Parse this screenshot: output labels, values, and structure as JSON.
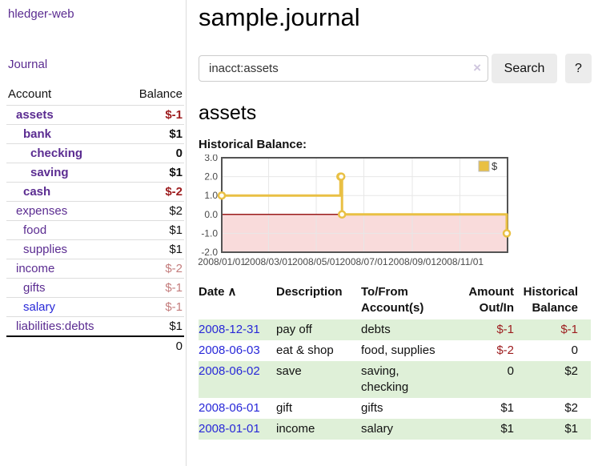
{
  "sidebar": {
    "brand": "hledger-web",
    "journal_link": "Journal",
    "accounts": {
      "col_account": "Account",
      "col_balance": "Balance",
      "rows": [
        {
          "name": "assets",
          "indent": 1,
          "bold": true,
          "color": "purple",
          "balance": "$-1"
        },
        {
          "name": "bank",
          "indent": 2,
          "bold": true,
          "color": "purple",
          "balance": "$1"
        },
        {
          "name": "checking",
          "indent": 3,
          "bold": true,
          "color": "purple",
          "balance": "0"
        },
        {
          "name": "saving",
          "indent": 3,
          "bold": true,
          "color": "purple",
          "balance": "$1"
        },
        {
          "name": "cash",
          "indent": 2,
          "bold": true,
          "color": "purple",
          "balance": "$-2"
        },
        {
          "name": "expenses",
          "indent": 1,
          "bold": false,
          "color": "purple",
          "balance": "$2"
        },
        {
          "name": "food",
          "indent": 2,
          "bold": false,
          "color": "purple",
          "balance": "$1"
        },
        {
          "name": "supplies",
          "indent": 2,
          "bold": false,
          "color": "purple",
          "balance": "$1"
        },
        {
          "name": "income",
          "indent": 1,
          "bold": false,
          "color": "purple",
          "balance": "$-2"
        },
        {
          "name": "gifts",
          "indent": 2,
          "bold": false,
          "color": "purple",
          "balance": "$-1"
        },
        {
          "name": "salary",
          "indent": 2,
          "bold": false,
          "color": "blue",
          "balance": "$-1"
        },
        {
          "name": "liabilities:debts",
          "indent": 1,
          "bold": false,
          "color": "purple",
          "balance": "$1"
        }
      ],
      "total": "0"
    }
  },
  "header": {
    "title": "sample.journal"
  },
  "search": {
    "value": "inacct:assets",
    "clear_icon": "×",
    "button": "Search",
    "help_button": "?"
  },
  "account_page": {
    "heading": "assets",
    "chart_label": "Historical Balance:"
  },
  "chart_data": {
    "type": "line",
    "step": true,
    "title": "Historical Balance:",
    "series": [
      {
        "name": "$",
        "color": "#e9c044",
        "points": [
          [
            "2008-01-01",
            1
          ],
          [
            "2008-06-01",
            2
          ],
          [
            "2008-06-02",
            2
          ],
          [
            "2008-06-03",
            0
          ],
          [
            "2008-12-31",
            -1
          ]
        ]
      }
    ],
    "xlim": [
      "2008-01-01",
      "2009-01-01"
    ],
    "ylim": [
      -2,
      3
    ],
    "xticks": [
      [
        "2008-01-01",
        "2008/01/01"
      ],
      [
        "2008-03-01",
        "2008/03/01"
      ],
      [
        "2008-05-01",
        "2008/05/01"
      ],
      [
        "2008-07-01",
        "2008/07/01"
      ],
      [
        "2008-09-01",
        "2008/09/01"
      ],
      [
        "2008-11-01",
        "2008/11/01"
      ]
    ],
    "yticks": [
      3.0,
      2.0,
      1.0,
      0.0,
      -1.0,
      -2.0
    ],
    "grid": true,
    "legend_position": "top-right",
    "negative_region_color": "#f9dbdb",
    "zero_line_color": "#9b1b1b",
    "grid_color": "#e7e7e7",
    "border_color": "#545454",
    "tick_label_color": "#4a4a4a"
  },
  "register": {
    "columns": [
      "Date",
      "Description",
      "To/From Account(s)",
      "Amount Out/In",
      "Historical Balance"
    ],
    "sort_icon": "∧",
    "rows": [
      {
        "date": "2008-12-31",
        "description": "pay off",
        "accounts": "debts",
        "amount": "$-1",
        "balance": "$-1"
      },
      {
        "date": "2008-06-03",
        "description": "eat & shop",
        "accounts": "food, supplies",
        "amount": "$-2",
        "balance": "0"
      },
      {
        "date": "2008-06-02",
        "description": "save",
        "accounts": "saving,\nchecking",
        "amount": "0",
        "balance": "$2"
      },
      {
        "date": "2008-06-01",
        "description": "gift",
        "accounts": "gifts",
        "amount": "$1",
        "balance": "$2"
      },
      {
        "date": "2008-01-01",
        "description": "income",
        "accounts": "salary",
        "amount": "$1",
        "balance": "$1"
      }
    ]
  },
  "colors": {
    "link_purple": "#5b2c91",
    "link_blue": "#2828d8",
    "negative_strong": "#9d1c1e",
    "negative_soft": "#c47d7d",
    "row_stripe_green": "#dff0d8",
    "chart_gold": "#e9c044"
  }
}
